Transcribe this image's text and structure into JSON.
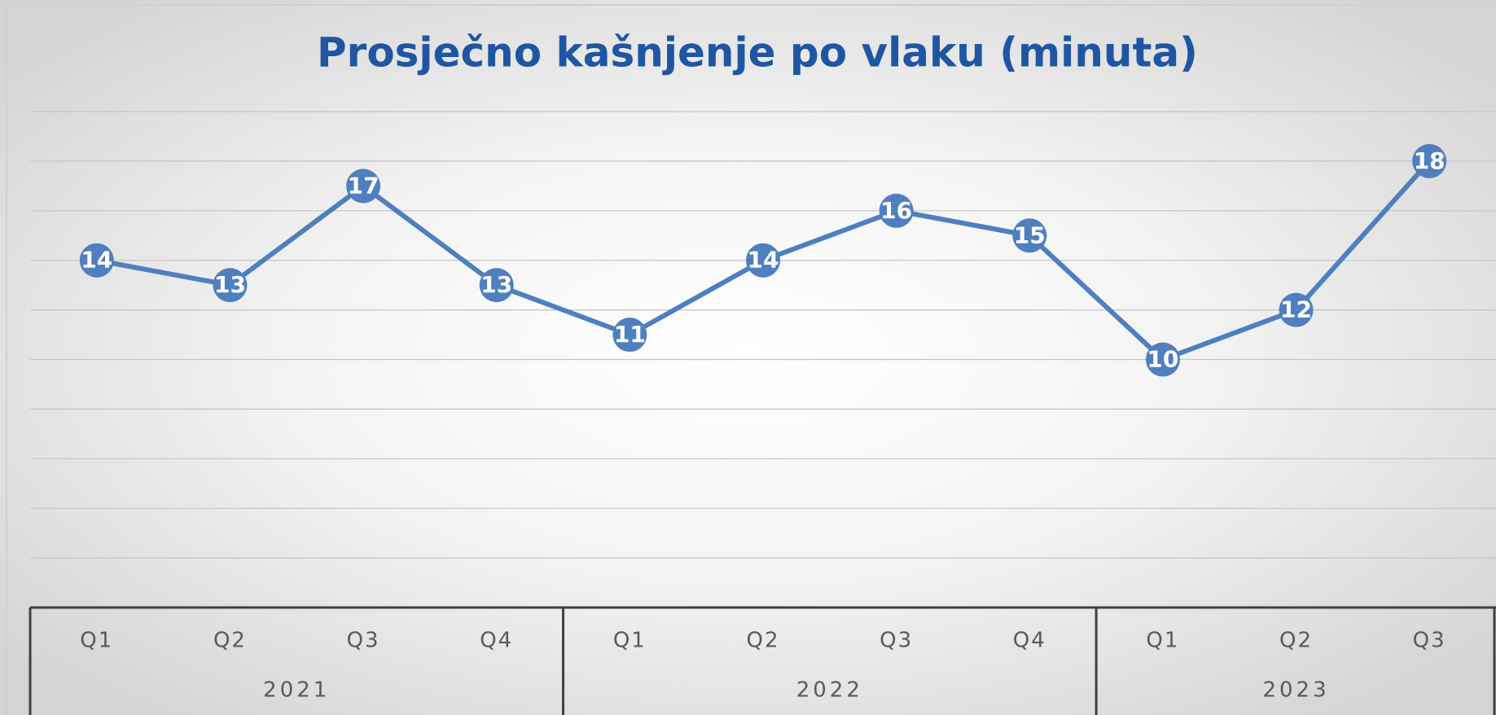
{
  "chart_data": {
    "type": "line",
    "title": "Prosječno kašnjenje po vlaku (minuta)",
    "categories": [
      "Q1",
      "Q2",
      "Q3",
      "Q4",
      "Q1",
      "Q2",
      "Q3",
      "Q4",
      "Q1",
      "Q2",
      "Q3"
    ],
    "groups": [
      {
        "name": "2021",
        "size": 4
      },
      {
        "name": "2022",
        "size": 4
      },
      {
        "name": "2023",
        "size": 3
      }
    ],
    "series": [
      {
        "name": "Prosječno kašnjenje",
        "color": "#4f7fbf",
        "values": [
          14,
          13,
          17,
          13,
          11,
          14,
          16,
          15,
          10,
          12,
          18
        ]
      }
    ],
    "ylim": [
      0,
      20
    ],
    "yticks": [
      0,
      2,
      4,
      6,
      8,
      10,
      12,
      14,
      16,
      18,
      20
    ],
    "grid": true
  }
}
